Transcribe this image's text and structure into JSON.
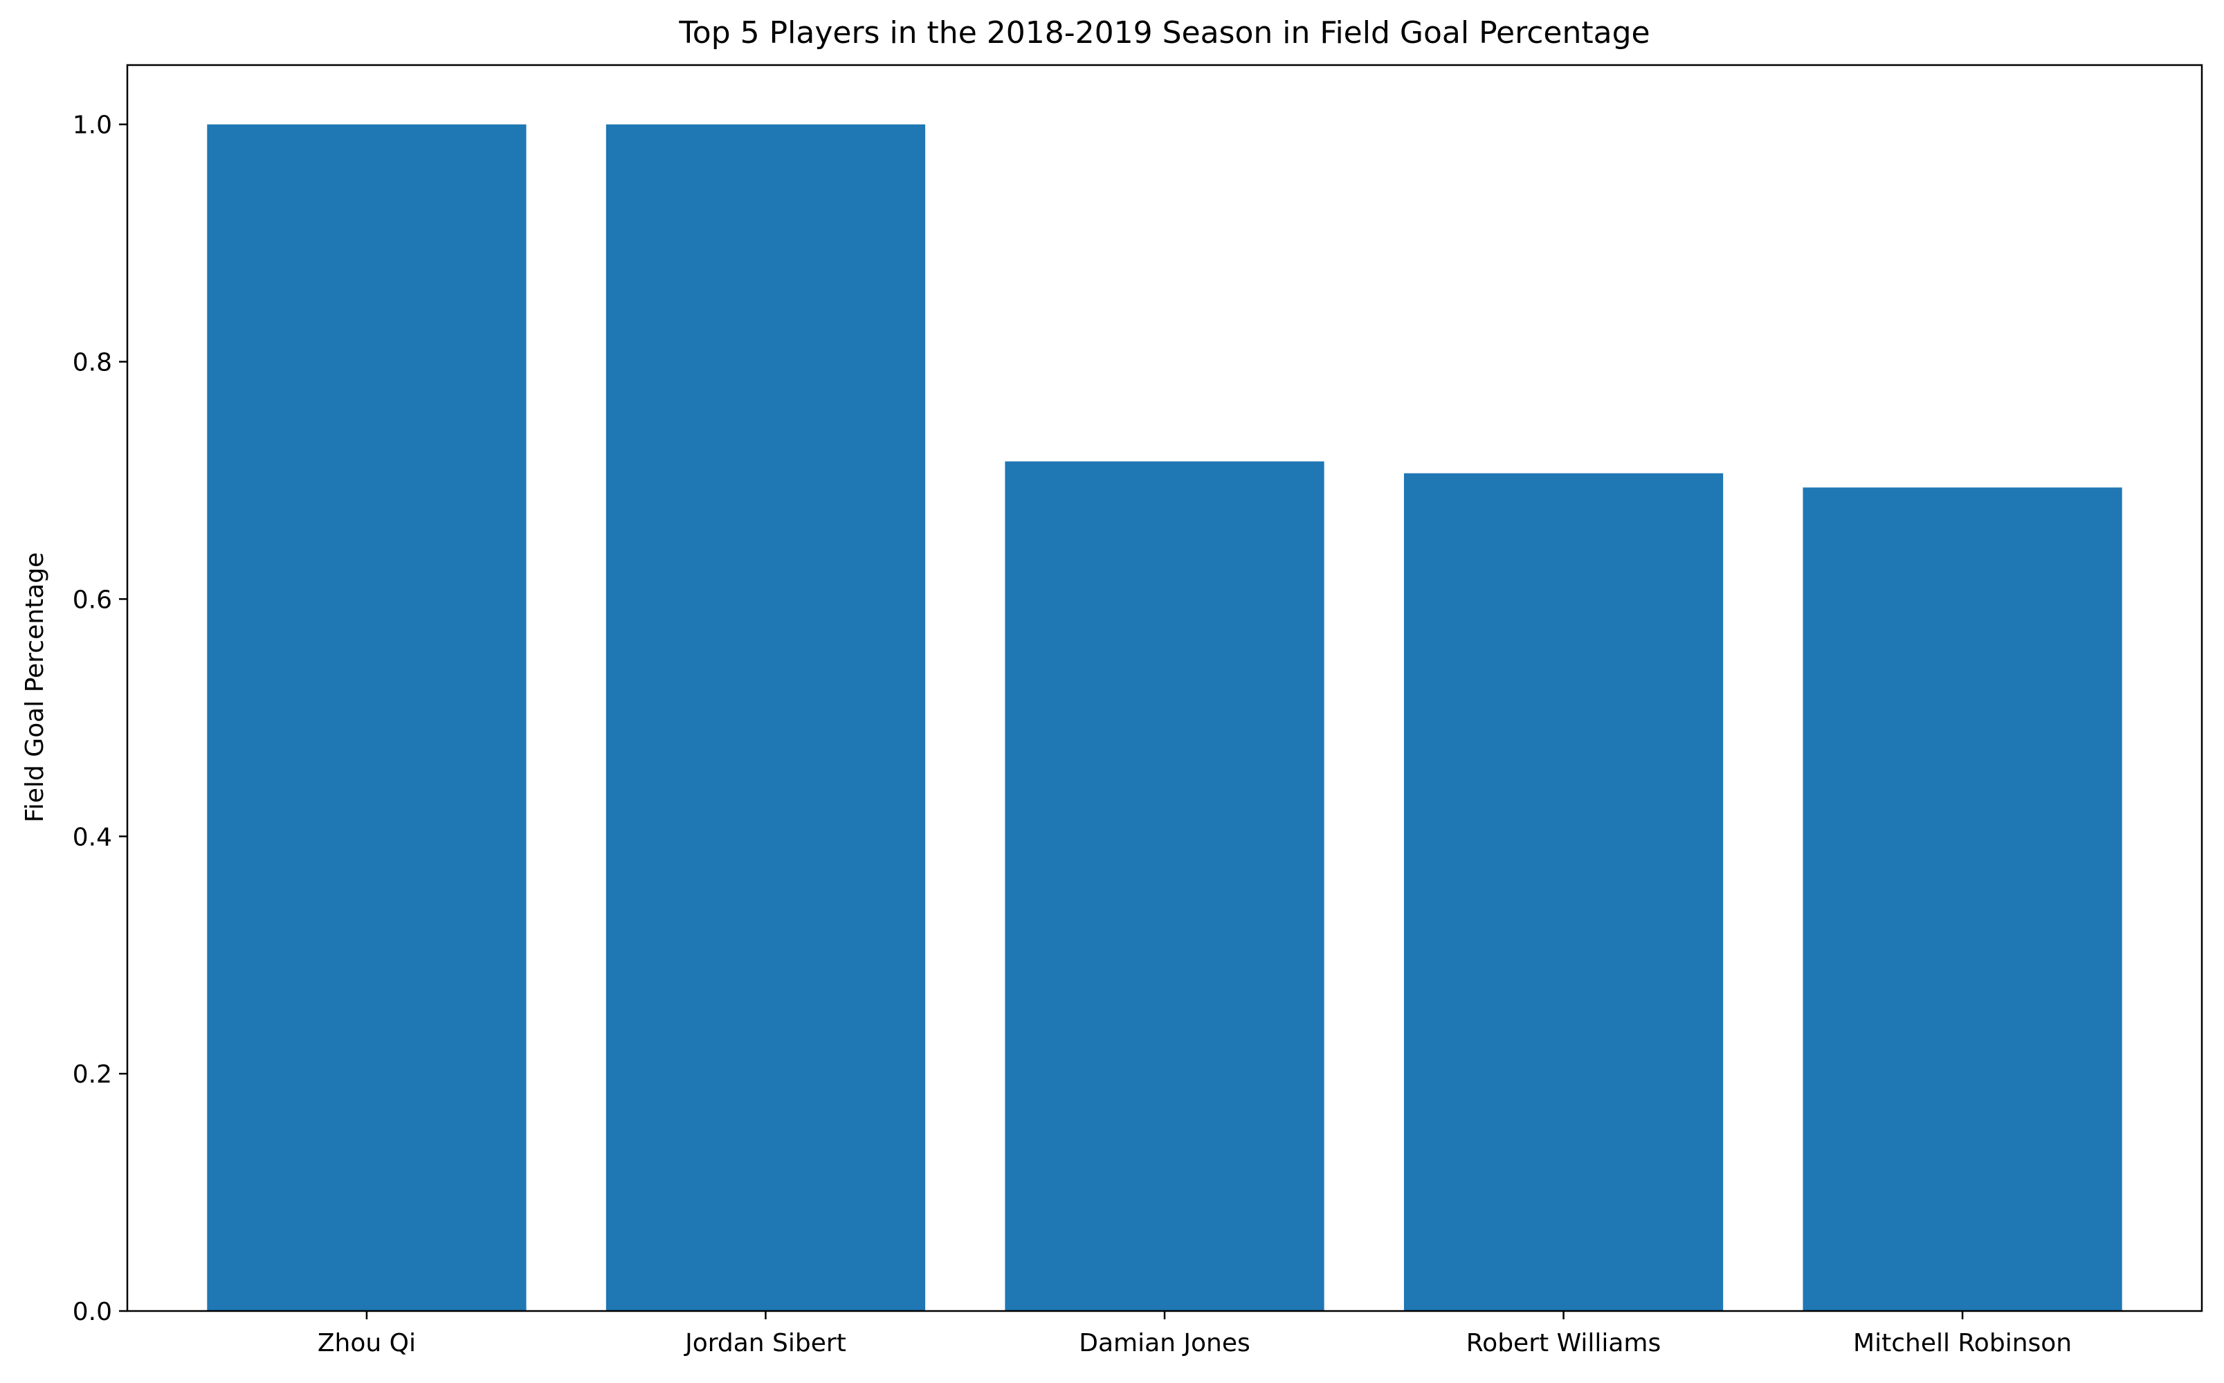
{
  "chart_data": {
    "type": "bar",
    "title": "Top 5 Players in the 2018-2019 Season in Field Goal Percentage",
    "xlabel": "",
    "ylabel": "Field Goal Percentage",
    "categories": [
      "Zhou Qi",
      "Jordan Sibert",
      "Damian Jones",
      "Robert Williams",
      "Mitchell Robinson"
    ],
    "values": [
      1.0,
      1.0,
      0.716,
      0.706,
      0.694
    ],
    "ylim": [
      0,
      1.05
    ],
    "yticks": [
      0.0,
      0.2,
      0.4,
      0.6,
      0.8,
      1.0
    ],
    "ytick_labels": [
      "0.0",
      "0.2",
      "0.4",
      "0.6",
      "0.8",
      "1.0"
    ],
    "bar_color": "#1f77b4",
    "grid": false,
    "legend": "none"
  }
}
